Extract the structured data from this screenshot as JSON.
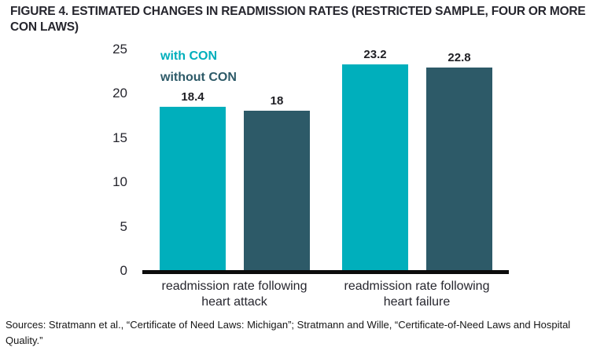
{
  "title": "FIGURE 4. ESTIMATED CHANGES IN READMISSION RATES (RESTRICTED SAMPLE, FOUR OR MORE CON LAWS)",
  "colors": {
    "with_con": "#00AFBC",
    "without_con": "#2D5A68",
    "axis": "#0c0c0c",
    "text": "#26262e"
  },
  "legend": [
    {
      "label": "with CON"
    },
    {
      "label": "without CON"
    }
  ],
  "chart_data": {
    "type": "bar",
    "title": "FIGURE 4. ESTIMATED CHANGES IN READMISSION RATES (RESTRICTED SAMPLE, FOUR OR MORE CON LAWS)",
    "categories": [
      "readmission rate following heart attack",
      "readmission rate following heart failure"
    ],
    "categories_lines": [
      [
        "readmission rate following",
        "heart attack"
      ],
      [
        "readmission rate following",
        "heart failure"
      ]
    ],
    "series": [
      {
        "name": "with CON",
        "color": "#00AFBC",
        "values": [
          18.4,
          23.2
        ],
        "value_labels": [
          "18.4",
          "23.2"
        ]
      },
      {
        "name": "without CON",
        "color": "#2D5A68",
        "values": [
          18,
          22.8
        ],
        "value_labels": [
          "18",
          "22.8"
        ]
      }
    ],
    "xlabel": "",
    "ylabel": "",
    "ylim": [
      0,
      25
    ],
    "yticks": [
      0,
      5,
      10,
      15,
      20,
      25
    ],
    "grid": false,
    "legend_position": "top-left-inside"
  },
  "source_note": "Sources: Stratmann et al., “Certificate of Need Laws: Michigan”; Stratmann and Wille, “Certificate-of-Need Laws and Hospital Quality.”"
}
